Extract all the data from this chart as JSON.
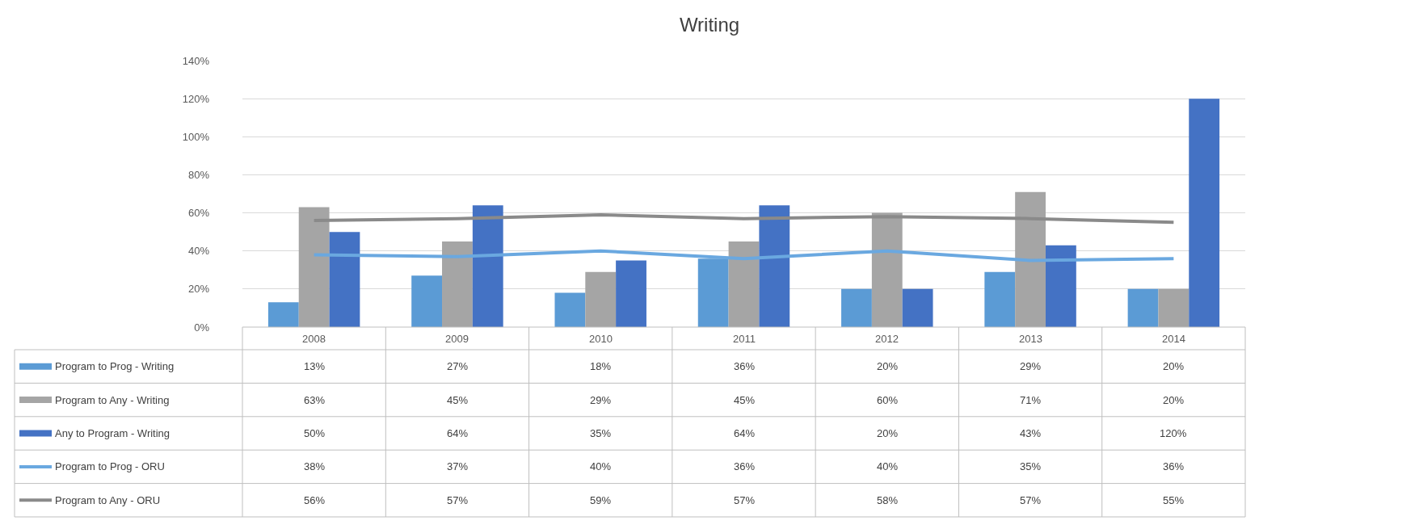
{
  "chart_data": {
    "type": "bar",
    "title": "Writing",
    "categories": [
      "2008",
      "2009",
      "2010",
      "2011",
      "2012",
      "2013",
      "2014"
    ],
    "series": [
      {
        "name": "Program to Prog - Writing",
        "color": "#5b9bd5",
        "values": [
          13,
          27,
          18,
          36,
          20,
          29,
          20
        ],
        "value_labels": [
          "13%",
          "27%",
          "18%",
          "36%",
          "20%",
          "29%",
          "20%"
        ]
      },
      {
        "name": "Program to Any - Writing",
        "color": "#a5a5a5",
        "values": [
          63,
          45,
          29,
          45,
          60,
          71,
          20
        ],
        "value_labels": [
          "63%",
          "45%",
          "29%",
          "45%",
          "60%",
          "71%",
          "20%"
        ]
      },
      {
        "name": "Any to Program - Writing",
        "color": "#4472c4",
        "values": [
          50,
          64,
          35,
          64,
          20,
          43,
          120
        ],
        "value_labels": [
          "50%",
          "64%",
          "35%",
          "64%",
          "20%",
          "43%",
          "120%"
        ]
      },
      {
        "name": "Program to Prog - ORU",
        "type": "line",
        "color": "#6aa8e0",
        "values": [
          38,
          37,
          40,
          36,
          40,
          35,
          36
        ],
        "value_labels": [
          "38%",
          "37%",
          "40%",
          "36%",
          "40%",
          "35%",
          "36%"
        ]
      },
      {
        "name": "Program to Any - ORU",
        "type": "line",
        "color": "#8a8a8a",
        "values": [
          56,
          57,
          59,
          57,
          58,
          57,
          55
        ],
        "value_labels": [
          "56%",
          "57%",
          "59%",
          "57%",
          "58%",
          "57%",
          "55%"
        ]
      }
    ],
    "ylim": [
      0,
      140
    ],
    "yticks": [
      {
        "value": 0,
        "label": "0%"
      },
      {
        "value": 20,
        "label": "20%"
      },
      {
        "value": 40,
        "label": "40%"
      },
      {
        "value": 60,
        "label": "60%"
      },
      {
        "value": 80,
        "label": "80%"
      },
      {
        "value": 100,
        "label": "100%"
      },
      {
        "value": 120,
        "label": "120%"
      },
      {
        "value": 140,
        "label": "140%"
      }
    ],
    "grid": "y",
    "legend": "bottom",
    "marker": "none",
    "line_style": "solid"
  }
}
